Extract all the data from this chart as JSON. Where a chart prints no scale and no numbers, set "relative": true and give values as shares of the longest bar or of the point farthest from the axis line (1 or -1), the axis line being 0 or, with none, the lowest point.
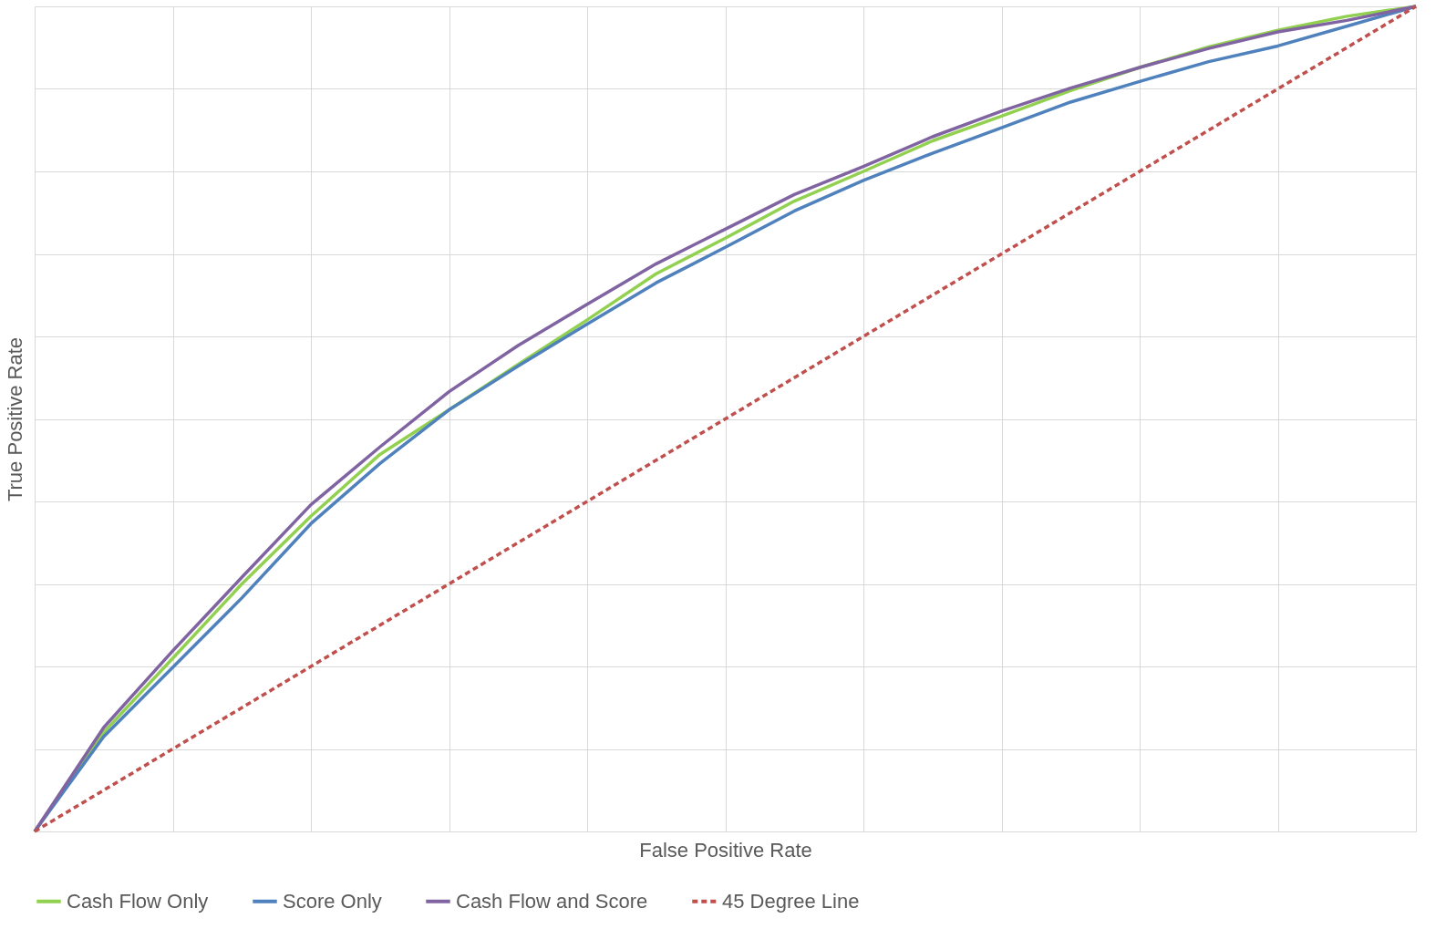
{
  "chart_data": {
    "type": "line",
    "relative": true,
    "xlabel": "False Positive Rate",
    "ylabel": "True Positive Rate",
    "grid": true,
    "legend": "bottom",
    "marker": "none",
    "categories": [
      null,
      null,
      null,
      null,
      null,
      null,
      null,
      null,
      null,
      null,
      null,
      null,
      null,
      null,
      null,
      null,
      null,
      null,
      null,
      null,
      null
    ],
    "series": [
      {
        "name": "Cash Flow Only",
        "color": "#92d050",
        "line_style": "solid",
        "values": [
          0,
          0.12,
          0.21,
          0.3,
          0.382,
          0.457,
          0.511,
          0.566,
          0.62,
          0.676,
          0.719,
          0.764,
          0.8,
          0.837,
          0.867,
          0.898,
          0.926,
          0.951,
          0.971,
          0.988,
          1
        ]
      },
      {
        "name": "Score Only",
        "color": "#4f81bd",
        "line_style": "solid",
        "values": [
          0,
          0.115,
          0.199,
          0.283,
          0.373,
          0.446,
          0.511,
          0.564,
          0.615,
          0.665,
          0.708,
          0.752,
          0.789,
          0.822,
          0.853,
          0.884,
          0.909,
          0.933,
          0.952,
          0.976,
          1
        ]
      },
      {
        "name": "Cash Flow and Score",
        "color": "#8064a2",
        "line_style": "solid",
        "values": [
          0,
          0.126,
          0.219,
          0.308,
          0.396,
          0.466,
          0.533,
          0.589,
          0.639,
          0.688,
          0.73,
          0.772,
          0.806,
          0.842,
          0.873,
          0.901,
          0.926,
          0.949,
          0.969,
          0.983,
          1
        ]
      },
      {
        "name": "45 Degree Line",
        "color": "#c0504d",
        "line_style": "dashed",
        "values": [
          0,
          0.05,
          0.1,
          0.15,
          0.2,
          0.25,
          0.3,
          0.35,
          0.4,
          0.45,
          0.5,
          0.55,
          0.6,
          0.65,
          0.7,
          0.75,
          0.8,
          0.85,
          0.9,
          0.95,
          1
        ]
      }
    ]
  }
}
